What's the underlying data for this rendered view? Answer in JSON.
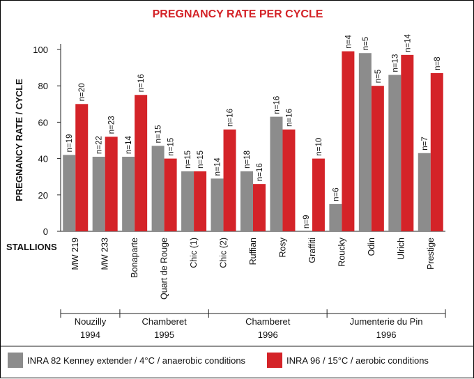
{
  "chart_data": {
    "type": "bar",
    "title": "PREGNANCY RATE PER CYCLE",
    "ylabel": "PREGNANCY RATE / CYCLE",
    "xlabel": "STALLIONS",
    "ylim": [
      0,
      100
    ],
    "yticks": [
      0,
      20,
      40,
      60,
      80,
      100
    ],
    "grid": false,
    "legend_position": "bottom",
    "colors": {
      "INRA 82": "#8c8c8c",
      "INRA 96": "#d42328"
    },
    "categories": [
      "MW 219",
      "MW 233",
      "Bonaparte",
      "Quart de Rouge",
      "Chic (1)",
      "Chic (2)",
      "Ruffian",
      "Rosy",
      "Graffiti",
      "Roucky",
      "Odin",
      "Ulrich",
      "Prestige"
    ],
    "series": [
      {
        "name": "INRA 82 Kenney extender / 4°C / anaerobic conditions",
        "color": "#8c8c8c",
        "values": [
          42,
          41,
          41,
          47,
          33,
          29,
          33,
          63,
          null,
          15,
          98,
          86,
          43
        ],
        "n_labels": [
          "n=19",
          "n=22",
          "n=14",
          "n=15",
          "n=15",
          "n=14",
          "n=18",
          "n=16",
          "n=9",
          "n=6",
          "n=5",
          "n=13",
          "n=7"
        ]
      },
      {
        "name": "INRA 96 / 15°C / aerobic conditions",
        "color": "#d42328",
        "values": [
          70,
          52,
          75,
          40,
          33,
          56,
          26,
          56,
          40,
          99,
          80,
          97,
          87
        ],
        "n_labels": [
          "n=20",
          "n=23",
          "n=16",
          "n=15",
          "n=15",
          "n=16",
          "n=16",
          "n=16",
          "n=10",
          "n=4",
          "n=5",
          "n=14",
          "n=8"
        ]
      }
    ],
    "groups": [
      {
        "name": "Nouzilly",
        "year": "1994",
        "start": 0,
        "end": 1
      },
      {
        "name": "Chamberet",
        "year": "1995",
        "start": 2,
        "end": 4
      },
      {
        "name": "Chamberet",
        "year": "1996",
        "start": 5,
        "end": 8
      },
      {
        "name": "Jumenterie du Pin",
        "year": "1996",
        "start": 9,
        "end": 12
      }
    ]
  }
}
